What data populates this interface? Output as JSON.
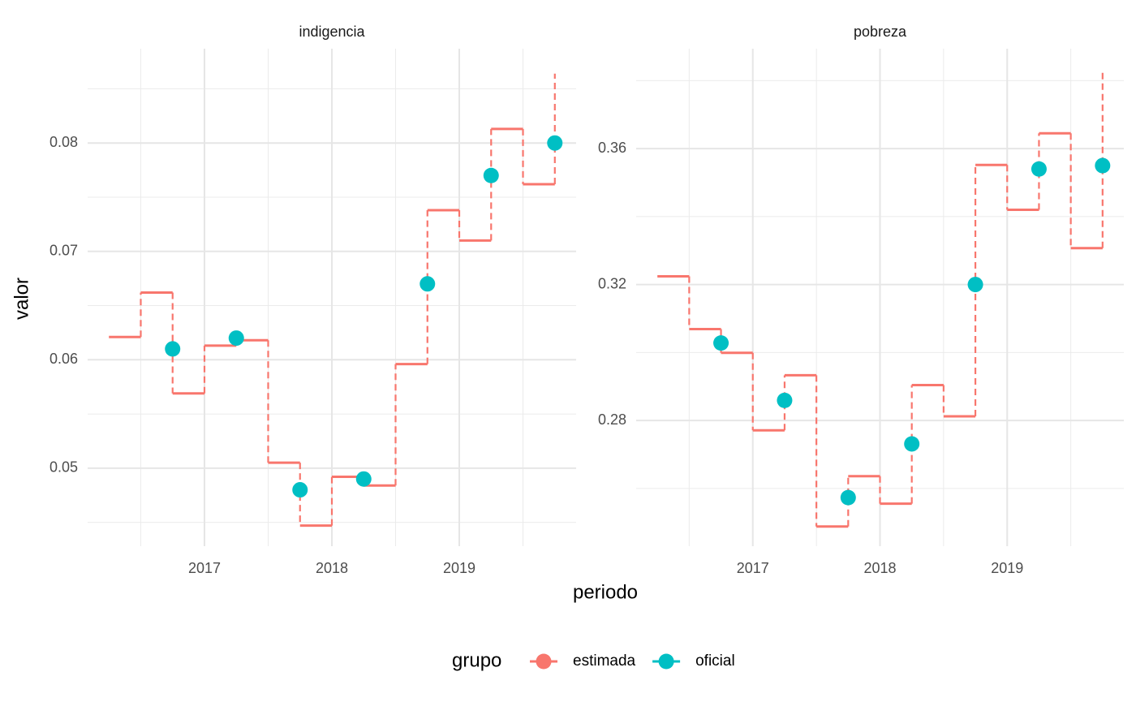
{
  "chart_data": {
    "type": "step",
    "x_label": "periodo",
    "y_label": "valor",
    "legend_title": "grupo",
    "legend_position": "bottom",
    "grid": true,
    "series": [
      {
        "name": "estimada",
        "color": "#F8766D",
        "style": "step"
      },
      {
        "name": "oficial",
        "color": "#00BFC4",
        "style": "point"
      }
    ],
    "facets": [
      {
        "title": "indigencia",
        "x": [
          2016.25,
          2016.5,
          2016.75,
          2017.0,
          2017.25,
          2017.5,
          2017.75,
          2018.0,
          2018.25,
          2018.5,
          2018.75,
          2019.0,
          2019.25,
          2019.5,
          2019.75
        ],
        "xlim": [
          2016.083,
          2019.917
        ],
        "xticks": [
          2017,
          2018,
          2019
        ],
        "ylim": [
          0.0428,
          0.0887
        ],
        "yticks": [
          0.05,
          0.06,
          0.07,
          0.08
        ],
        "series": [
          {
            "values": [
              0.0621,
              0.0662,
              0.0569,
              0.0613,
              0.0618,
              0.0505,
              0.0447,
              0.0492,
              0.0484,
              0.0596,
              0.0738,
              0.071,
              0.0813,
              0.0762,
              0.0864
            ]
          },
          {
            "values": [
              null,
              null,
              0.061,
              null,
              0.062,
              null,
              0.048,
              null,
              0.049,
              null,
              0.067,
              null,
              0.077,
              null,
              0.08
            ]
          }
        ]
      },
      {
        "title": "pobreza",
        "x": [
          2016.25,
          2016.5,
          2016.75,
          2017.0,
          2017.25,
          2017.5,
          2017.75,
          2018.0,
          2018.25,
          2018.5,
          2018.75,
          2019.0,
          2019.25,
          2019.5,
          2019.75
        ],
        "xlim": [
          2016.083,
          2019.917
        ],
        "xticks": [
          2017,
          2018,
          2019
        ],
        "ylim": [
          0.243,
          0.3894
        ],
        "yticks": [
          0.28,
          0.32,
          0.36
        ],
        "series": [
          {
            "values": [
              0.3224,
              0.3069,
              0.2999,
              0.2771,
              0.2933,
              0.2488,
              0.2636,
              0.2555,
              0.2904,
              0.2812,
              0.3552,
              0.342,
              0.3645,
              0.3307,
              0.3829
            ]
          },
          {
            "values": [
              null,
              null,
              0.3028,
              null,
              0.2859,
              null,
              0.2573,
              null,
              0.2731,
              null,
              0.32,
              null,
              0.354,
              null,
              0.355
            ]
          }
        ]
      }
    ]
  }
}
